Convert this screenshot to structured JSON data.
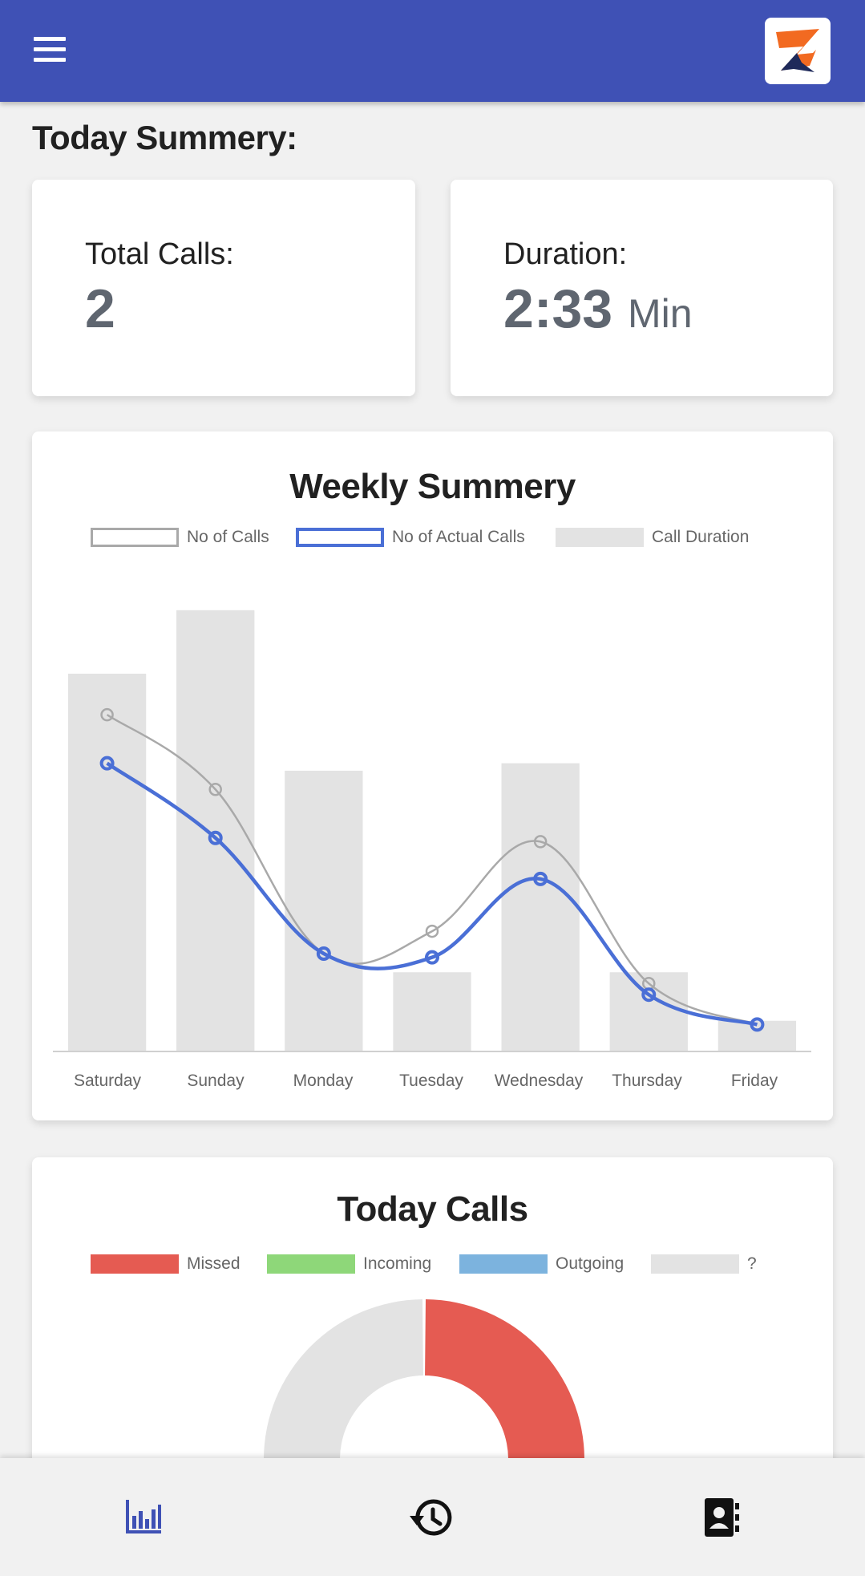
{
  "header": {
    "menu_icon": "hamburger-menu-icon",
    "logo": "app-logo"
  },
  "today": {
    "title": "Today Summery:",
    "total_calls_label": "Total Calls:",
    "total_calls_value": "2",
    "duration_label": "Duration:",
    "duration_value": "2:33",
    "duration_unit": "Min"
  },
  "weekly": {
    "title": "Weekly Summery",
    "legend": [
      "No of Calls",
      "No of Actual Calls",
      "Call Duration"
    ]
  },
  "today_calls": {
    "title": "Today Calls",
    "legend": [
      "Missed",
      "Incoming",
      "Outgoing",
      "?"
    ]
  },
  "bottom_nav": {
    "items": [
      "chart-bar-icon",
      "history-icon",
      "contacts-icon"
    ],
    "active_color": "#3f51b5"
  },
  "colors": {
    "primary": "#3f51b5",
    "actual_calls_line": "#4a6fd6",
    "calls_line": "#a9a9a9",
    "duration_bar": "#e3e3e3",
    "missed": "#e55b52",
    "incoming": "#8ed779",
    "outgoing": "#7cb3de",
    "unknown": "#e3e3e3"
  },
  "chart_data": [
    {
      "type": "bar+line",
      "title": "Weekly Summery",
      "categories": [
        "Saturday",
        "Sunday",
        "Monday",
        "Tuesday",
        "Wednesday",
        "Thursday",
        "Friday"
      ],
      "series": [
        {
          "name": "No of Calls",
          "type": "line",
          "values": [
            9,
            7,
            2.6,
            3.2,
            5.6,
            1.8,
            0.7
          ]
        },
        {
          "name": "No of Actual Calls",
          "type": "line",
          "values": [
            7.7,
            5.7,
            2.6,
            2.5,
            4.6,
            1.5,
            0.7
          ]
        },
        {
          "name": "Call Duration",
          "type": "bar",
          "values": [
            10.1,
            11.8,
            7.5,
            2.1,
            7.7,
            2.1,
            0.8
          ]
        }
      ],
      "ylim": [
        0,
        13
      ],
      "grid": false,
      "legend_position": "top"
    },
    {
      "type": "pie",
      "title": "Today Calls",
      "labels": [
        "Missed",
        "Incoming",
        "Outgoing",
        "?"
      ],
      "values": [
        1,
        0,
        0,
        1
      ]
    }
  ]
}
